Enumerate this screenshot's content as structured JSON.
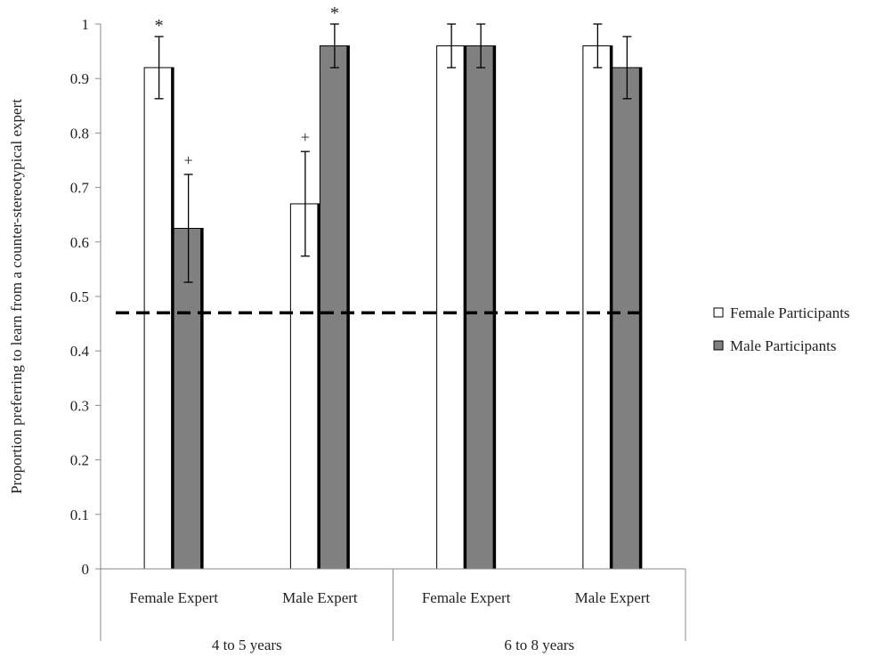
{
  "chart_data": {
    "type": "bar",
    "ylabel": "Proportion preferring to learn from a counter-stereotypical expert",
    "ylim": [
      0,
      1
    ],
    "yticks": [
      "0",
      "0.1",
      "0.2",
      "0.3",
      "0.4",
      "0.5",
      "0.6",
      "0.7",
      "0.8",
      "0.9",
      "1"
    ],
    "groups": [
      {
        "label": "4 to 5 years",
        "categories": [
          "Female Expert",
          "Male Expert"
        ]
      },
      {
        "label": "6 to 8 years",
        "categories": [
          "Female Expert",
          "Male Expert"
        ]
      }
    ],
    "categories": [
      "Female Expert",
      "Male Expert",
      "Female Expert",
      "Male Expert"
    ],
    "series": [
      {
        "name": "Female Participants",
        "color": "#ffffff",
        "values": [
          0.92,
          0.67,
          0.96,
          0.96
        ],
        "errors": [
          0.057,
          0.096,
          0.04,
          0.04
        ],
        "markers": [
          "*",
          "+",
          "",
          ""
        ]
      },
      {
        "name": "Male Participants",
        "color": "#808080",
        "values": [
          0.625,
          0.96,
          0.96,
          0.92
        ],
        "errors": [
          0.099,
          0.04,
          0.04,
          0.057
        ],
        "markers": [
          "+",
          "*",
          "",
          ""
        ]
      }
    ],
    "reference_line": {
      "value": 0.47,
      "style": "dashed"
    },
    "legend": "right",
    "grid": false
  }
}
